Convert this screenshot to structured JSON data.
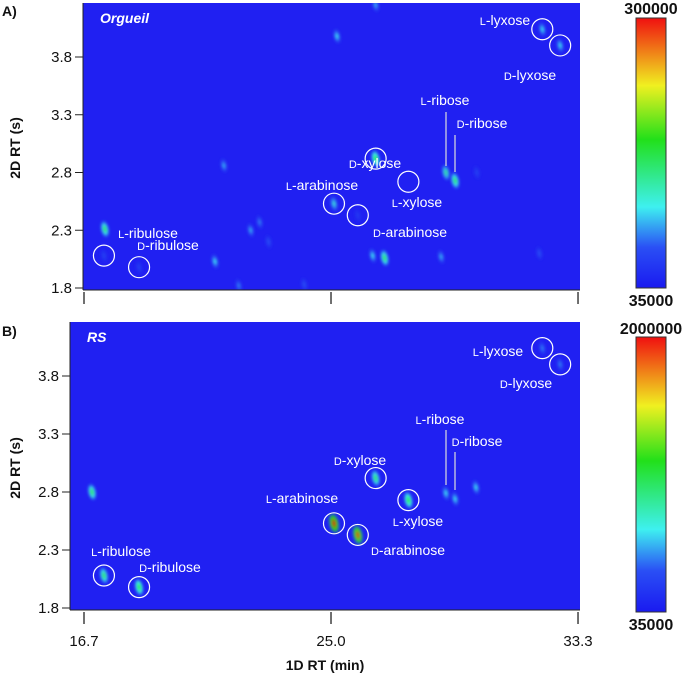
{
  "chart_data": [
    {
      "type": "heatmap",
      "panel_label": "A)",
      "sample": "Orgueil",
      "xlabel": "1D RT (min)",
      "ylabel": "2D RT (s)",
      "xlim": [
        16.2,
        33.7
      ],
      "ylim": [
        1.8,
        4.3
      ],
      "xticks": [
        "16.7",
        "25.0",
        "33.3"
      ],
      "yticks": [
        "1.8",
        "2.3",
        "2.8",
        "3.3",
        "3.8"
      ],
      "colorbar": {
        "max": "300000",
        "min": "35000"
      },
      "peaks": [
        {
          "label": "L-lyxose",
          "rt1": 32.1,
          "rt2": 4.04,
          "intensity": 0.3,
          "circle": true
        },
        {
          "label": "D-lyxose",
          "rt1": 32.7,
          "rt2": 3.9,
          "intensity": 0.3,
          "circle": true
        },
        {
          "label": "L-ribose",
          "rt1": 28.86,
          "rt2": 2.8,
          "intensity": 0.42,
          "circle": false
        },
        {
          "label": "D-ribose",
          "rt1": 29.17,
          "rt2": 2.73,
          "intensity": 0.5,
          "circle": false
        },
        {
          "label": "D-xylose",
          "rt1": 26.5,
          "rt2": 2.92,
          "intensity": 0.55,
          "circle": true
        },
        {
          "label": "L-xylose",
          "rt1": 27.6,
          "rt2": 2.72,
          "intensity": 0.0,
          "circle": true
        },
        {
          "label": "L-arabinose",
          "rt1": 25.1,
          "rt2": 2.53,
          "intensity": 0.33,
          "circle": true
        },
        {
          "label": "D-arabinose",
          "rt1": 25.9,
          "rt2": 2.43,
          "intensity": 0.1,
          "circle": true
        },
        {
          "label": "L-ribulose",
          "rt1": 17.37,
          "rt2": 2.08,
          "intensity": 0.12,
          "circle": true
        },
        {
          "label": "D-ribulose",
          "rt1": 18.55,
          "rt2": 1.98,
          "intensity": 0.12,
          "circle": true
        }
      ],
      "unlabeled_peaks": [
        {
          "rt1": 17.4,
          "rt2": 2.31,
          "intensity": 0.5
        },
        {
          "rt1": 25.2,
          "rt2": 3.98,
          "intensity": 0.3
        },
        {
          "rt1": 26.5,
          "rt2": 4.25,
          "intensity": 0.25
        },
        {
          "rt1": 21.4,
          "rt2": 2.86,
          "intensity": 0.25
        },
        {
          "rt1": 22.3,
          "rt2": 2.3,
          "intensity": 0.25
        },
        {
          "rt1": 22.6,
          "rt2": 2.37,
          "intensity": 0.2
        },
        {
          "rt1": 21.9,
          "rt2": 1.82,
          "intensity": 0.2
        },
        {
          "rt1": 21.1,
          "rt2": 2.03,
          "intensity": 0.3
        },
        {
          "rt1": 26.8,
          "rt2": 2.06,
          "intensity": 0.5
        },
        {
          "rt1": 26.4,
          "rt2": 2.08,
          "intensity": 0.3
        },
        {
          "rt1": 28.7,
          "rt2": 2.07,
          "intensity": 0.25
        },
        {
          "rt1": 32.0,
          "rt2": 2.1,
          "intensity": 0.15
        },
        {
          "rt1": 24.1,
          "rt2": 1.83,
          "intensity": 0.15
        },
        {
          "rt1": 29.9,
          "rt2": 2.8,
          "intensity": 0.12
        },
        {
          "rt1": 22.9,
          "rt2": 2.2,
          "intensity": 0.15
        }
      ]
    },
    {
      "type": "heatmap",
      "panel_label": "B)",
      "sample": "RS",
      "xlabel": "1D RT (min)",
      "ylabel": "2D RT (s)",
      "xlim": [
        16.2,
        33.7
      ],
      "ylim": [
        1.8,
        4.3
      ],
      "xticks": [
        "16.7",
        "25.0",
        "33.3"
      ],
      "yticks": [
        "1.8",
        "2.3",
        "2.8",
        "3.3",
        "3.8"
      ],
      "colorbar": {
        "max": "2000000",
        "min": "35000"
      },
      "peaks": [
        {
          "label": "L-lyxose",
          "rt1": 32.1,
          "rt2": 4.04,
          "intensity": 0.2,
          "circle": true
        },
        {
          "label": "D-lyxose",
          "rt1": 32.7,
          "rt2": 3.9,
          "intensity": 0.2,
          "circle": true
        },
        {
          "label": "L-ribose",
          "rt1": 28.86,
          "rt2": 2.79,
          "intensity": 0.3,
          "circle": false
        },
        {
          "label": "D-ribose",
          "rt1": 29.17,
          "rt2": 2.74,
          "intensity": 0.3,
          "circle": false
        },
        {
          "label": "D-xylose",
          "rt1": 26.5,
          "rt2": 2.92,
          "intensity": 0.5,
          "circle": true
        },
        {
          "label": "L-xylose",
          "rt1": 27.6,
          "rt2": 2.73,
          "intensity": 0.55,
          "circle": true
        },
        {
          "label": "L-arabinose",
          "rt1": 25.1,
          "rt2": 2.53,
          "intensity": 1.0,
          "circle": true
        },
        {
          "label": "D-arabinose",
          "rt1": 25.9,
          "rt2": 2.43,
          "intensity": 0.95,
          "circle": true
        },
        {
          "label": "L-ribulose",
          "rt1": 17.37,
          "rt2": 2.08,
          "intensity": 0.5,
          "circle": true
        },
        {
          "label": "D-ribulose",
          "rt1": 18.55,
          "rt2": 1.98,
          "intensity": 0.55,
          "circle": true
        }
      ],
      "unlabeled_peaks": [
        {
          "rt1": 16.97,
          "rt2": 2.8,
          "intensity": 0.5
        },
        {
          "rt1": 29.87,
          "rt2": 2.84,
          "intensity": 0.3
        }
      ]
    }
  ]
}
